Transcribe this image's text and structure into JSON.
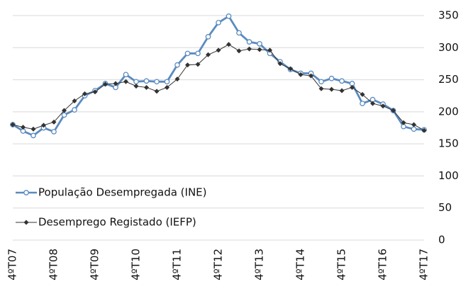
{
  "chart_data": {
    "type": "line",
    "categories": [
      "4ºT07",
      null,
      null,
      null,
      "4ºT08",
      null,
      null,
      null,
      "4ºT09",
      null,
      null,
      null,
      "4ºT10",
      null,
      null,
      null,
      "4ºT11",
      null,
      null,
      null,
      "4ºT12",
      null,
      null,
      null,
      "4ºT13",
      null,
      null,
      null,
      "4ºT14",
      null,
      null,
      null,
      "4ºT15",
      null,
      null,
      null,
      "4ºT16",
      null,
      null,
      null,
      "4ºT17"
    ],
    "series": [
      {
        "name": "População Desempregada (INE)",
        "color": "#5b8bc0",
        "marker": "circle",
        "values": [
          180,
          170,
          163,
          175,
          169,
          195,
          203,
          225,
          233,
          244,
          238,
          258,
          247,
          248,
          247,
          247,
          273,
          291,
          291,
          317,
          339,
          349,
          323,
          309,
          306,
          291,
          278,
          266,
          260,
          260,
          247,
          252,
          248,
          244,
          213,
          219,
          212,
          202,
          177,
          173,
          172
        ]
      },
      {
        "name": "Desemprego Registado (IEFP)",
        "color": "#333333",
        "marker": "diamond",
        "values": [
          180,
          176,
          173,
          179,
          184,
          202,
          217,
          228,
          231,
          243,
          244,
          247,
          240,
          238,
          232,
          238,
          251,
          273,
          274,
          289,
          296,
          305,
          295,
          298,
          297,
          296,
          275,
          267,
          258,
          256,
          236,
          235,
          233,
          238,
          227,
          213,
          209,
          202,
          183,
          180,
          171
        ]
      }
    ],
    "ylim": [
      0,
      350
    ],
    "yticks": [
      0,
      50,
      100,
      150,
      200,
      250,
      300,
      350
    ],
    "grid": true,
    "legend": "lower left",
    "yaxis_side": "right"
  }
}
